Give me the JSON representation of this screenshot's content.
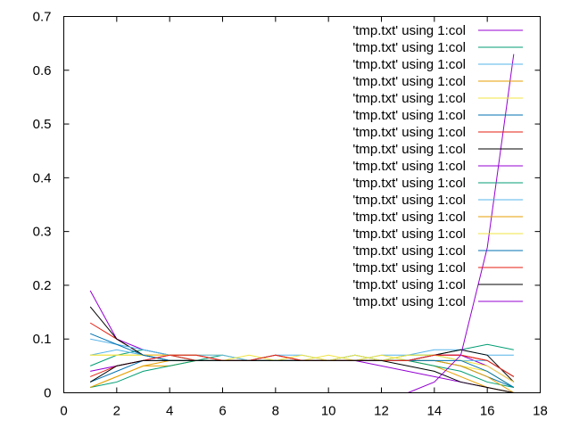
{
  "chart_data": {
    "type": "line",
    "title": "",
    "xlabel": "",
    "ylabel": "",
    "xlim": [
      0,
      18
    ],
    "ylim": [
      0,
      0.7
    ],
    "xticks": [
      0,
      2,
      4,
      6,
      8,
      10,
      12,
      14,
      16,
      18
    ],
    "xtick_labels": [
      "0",
      "2",
      "4",
      "6",
      "8",
      "10",
      "12",
      "14",
      "16",
      "18"
    ],
    "yticks": [
      0,
      0.1,
      0.2,
      0.3,
      0.4,
      0.5,
      0.6,
      0.7
    ],
    "ytick_labels": [
      "0",
      "0.1",
      "0.2",
      "0.3",
      "0.4",
      "0.5",
      "0.6",
      "0.7"
    ],
    "grid": false,
    "legend_position": "top-right",
    "x": [
      1,
      2,
      3,
      4,
      5,
      6,
      7,
      8,
      9,
      10,
      11,
      12,
      13,
      14,
      15,
      16,
      17
    ],
    "series": [
      {
        "name": "'tmp.txt' using 1:col",
        "color": "#9400d3",
        "values": [
          0.19,
          0.1,
          0.08,
          0.07,
          0.07,
          0.06,
          0.06,
          0.06,
          0.06,
          0.06,
          0.06,
          0.05,
          0.04,
          0.03,
          0.02,
          0.01,
          0.0
        ]
      },
      {
        "name": "'tmp.txt' using 1:col",
        "color": "#009e73",
        "values": [
          0.05,
          0.07,
          0.08,
          0.07,
          0.06,
          0.07,
          0.06,
          0.06,
          0.06,
          0.06,
          0.07,
          0.06,
          0.07,
          0.07,
          0.08,
          0.09,
          0.08
        ]
      },
      {
        "name": "'tmp.txt' using 1:col",
        "color": "#56b4e9",
        "values": [
          0.07,
          0.08,
          0.07,
          0.06,
          0.06,
          0.06,
          0.06,
          0.07,
          0.06,
          0.06,
          0.06,
          0.07,
          0.07,
          0.08,
          0.08,
          0.07,
          0.07
        ]
      },
      {
        "name": "'tmp.txt' using 1:col",
        "color": "#e69f00",
        "values": [
          0.01,
          0.03,
          0.05,
          0.05,
          0.06,
          0.06,
          0.06,
          0.06,
          0.06,
          0.06,
          0.06,
          0.06,
          0.06,
          0.05,
          0.03,
          0.01,
          0.0
        ]
      },
      {
        "name": "'tmp.txt' using 1:col",
        "color": "#f0e442",
        "values": [
          0.07,
          0.07,
          0.07,
          0.07,
          0.07,
          0.07,
          0.06,
          0.07,
          0.06,
          0.07,
          0.06,
          0.07,
          0.06,
          0.06,
          0.05,
          0.04,
          0.01
        ]
      },
      {
        "name": "'tmp.txt' using 1:col",
        "color": "#0072b2",
        "values": [
          0.02,
          0.04,
          0.06,
          0.06,
          0.06,
          0.06,
          0.06,
          0.06,
          0.06,
          0.06,
          0.06,
          0.06,
          0.06,
          0.06,
          0.05,
          0.03,
          0.01
        ]
      },
      {
        "name": "'tmp.txt' using 1:col",
        "color": "#e51e10",
        "values": [
          0.13,
          0.1,
          0.07,
          0.07,
          0.06,
          0.06,
          0.06,
          0.07,
          0.06,
          0.06,
          0.06,
          0.06,
          0.06,
          0.07,
          0.07,
          0.06,
          0.03
        ]
      },
      {
        "name": "'tmp.txt' using 1:col",
        "color": "#000000",
        "values": [
          0.16,
          0.1,
          0.07,
          0.06,
          0.06,
          0.06,
          0.06,
          0.06,
          0.06,
          0.06,
          0.06,
          0.06,
          0.06,
          0.07,
          0.08,
          0.07,
          0.02
        ]
      },
      {
        "name": "'tmp.txt' using 1:col",
        "color": "#9400d3",
        "values": [
          0.04,
          0.05,
          0.06,
          0.07,
          0.07,
          0.06,
          0.06,
          0.06,
          0.06,
          0.06,
          0.06,
          0.06,
          0.06,
          0.07,
          0.07,
          0.05,
          0.02
        ]
      },
      {
        "name": "'tmp.txt' using 1:col",
        "color": "#009e73",
        "values": [
          0.01,
          0.02,
          0.04,
          0.05,
          0.06,
          0.06,
          0.06,
          0.06,
          0.06,
          0.06,
          0.06,
          0.06,
          0.06,
          0.05,
          0.04,
          0.02,
          0.01
        ]
      },
      {
        "name": "'tmp.txt' using 1:col",
        "color": "#56b4e9",
        "values": [
          0.1,
          0.09,
          0.08,
          0.07,
          0.07,
          0.07,
          0.06,
          0.07,
          0.07,
          0.06,
          0.07,
          0.06,
          0.06,
          0.07,
          0.06,
          0.06,
          0.03
        ]
      },
      {
        "name": "'tmp.txt' using 1:col",
        "color": "#e69f00",
        "values": [
          0.01,
          0.03,
          0.05,
          0.06,
          0.06,
          0.06,
          0.06,
          0.06,
          0.06,
          0.06,
          0.06,
          0.06,
          0.06,
          0.06,
          0.05,
          0.03,
          0.0
        ]
      },
      {
        "name": "'tmp.txt' using 1:col",
        "color": "#f0e442",
        "values": [
          0.07,
          0.07,
          0.07,
          0.07,
          0.07,
          0.06,
          0.07,
          0.06,
          0.07,
          0.06,
          0.07,
          0.06,
          0.07,
          0.07,
          0.06,
          0.05,
          0.02
        ]
      },
      {
        "name": "'tmp.txt' using 1:col",
        "color": "#0072b2",
        "values": [
          0.11,
          0.09,
          0.07,
          0.06,
          0.06,
          0.06,
          0.06,
          0.06,
          0.06,
          0.06,
          0.06,
          0.06,
          0.06,
          0.06,
          0.06,
          0.04,
          0.01
        ]
      },
      {
        "name": "'tmp.txt' using 1:col",
        "color": "#e51e10",
        "values": [
          0.03,
          0.05,
          0.06,
          0.07,
          0.07,
          0.06,
          0.06,
          0.07,
          0.06,
          0.06,
          0.06,
          0.06,
          0.06,
          0.07,
          0.07,
          0.06,
          0.03
        ]
      },
      {
        "name": "'tmp.txt' using 1:col",
        "color": "#000000",
        "values": [
          0.02,
          0.05,
          0.06,
          0.06,
          0.06,
          0.06,
          0.06,
          0.06,
          0.06,
          0.06,
          0.06,
          0.06,
          0.05,
          0.04,
          0.02,
          0.01,
          0.0
        ]
      },
      {
        "name": "'tmp.txt' using 1:col",
        "color": "#9400d3",
        "x": [
          13,
          14,
          15,
          16,
          17
        ],
        "values": [
          0.0,
          0.02,
          0.07,
          0.27,
          0.63
        ]
      }
    ]
  }
}
